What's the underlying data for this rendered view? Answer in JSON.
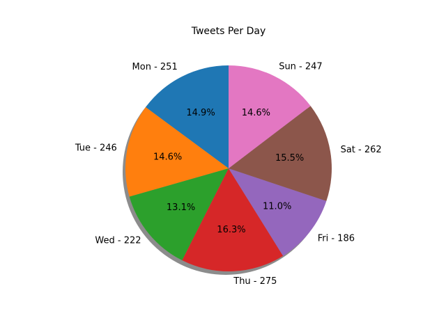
{
  "chart_data": {
    "type": "pie",
    "title": "Tweets Per Day",
    "categories": [
      "Mon",
      "Tue",
      "Wed",
      "Thu",
      "Fri",
      "Sat",
      "Sun"
    ],
    "values": [
      251,
      246,
      222,
      275,
      186,
      262,
      247
    ],
    "labels": [
      "Mon - 251",
      "Tue - 246",
      "Wed - 222",
      "Thu - 275",
      "Fri - 186",
      "Sat - 262",
      "Sun - 247"
    ],
    "percent_labels": [
      "14.9%",
      "14.6%",
      "13.1%",
      "16.3%",
      "11.0%",
      "15.5%",
      "14.6%"
    ],
    "colors": [
      "#1f77b4",
      "#ff7f0e",
      "#2ca02c",
      "#d62728",
      "#9467bd",
      "#8c564b",
      "#e377c2"
    ],
    "start_angle_deg": 90,
    "direction": "counterclockwise",
    "shadow": true
  }
}
